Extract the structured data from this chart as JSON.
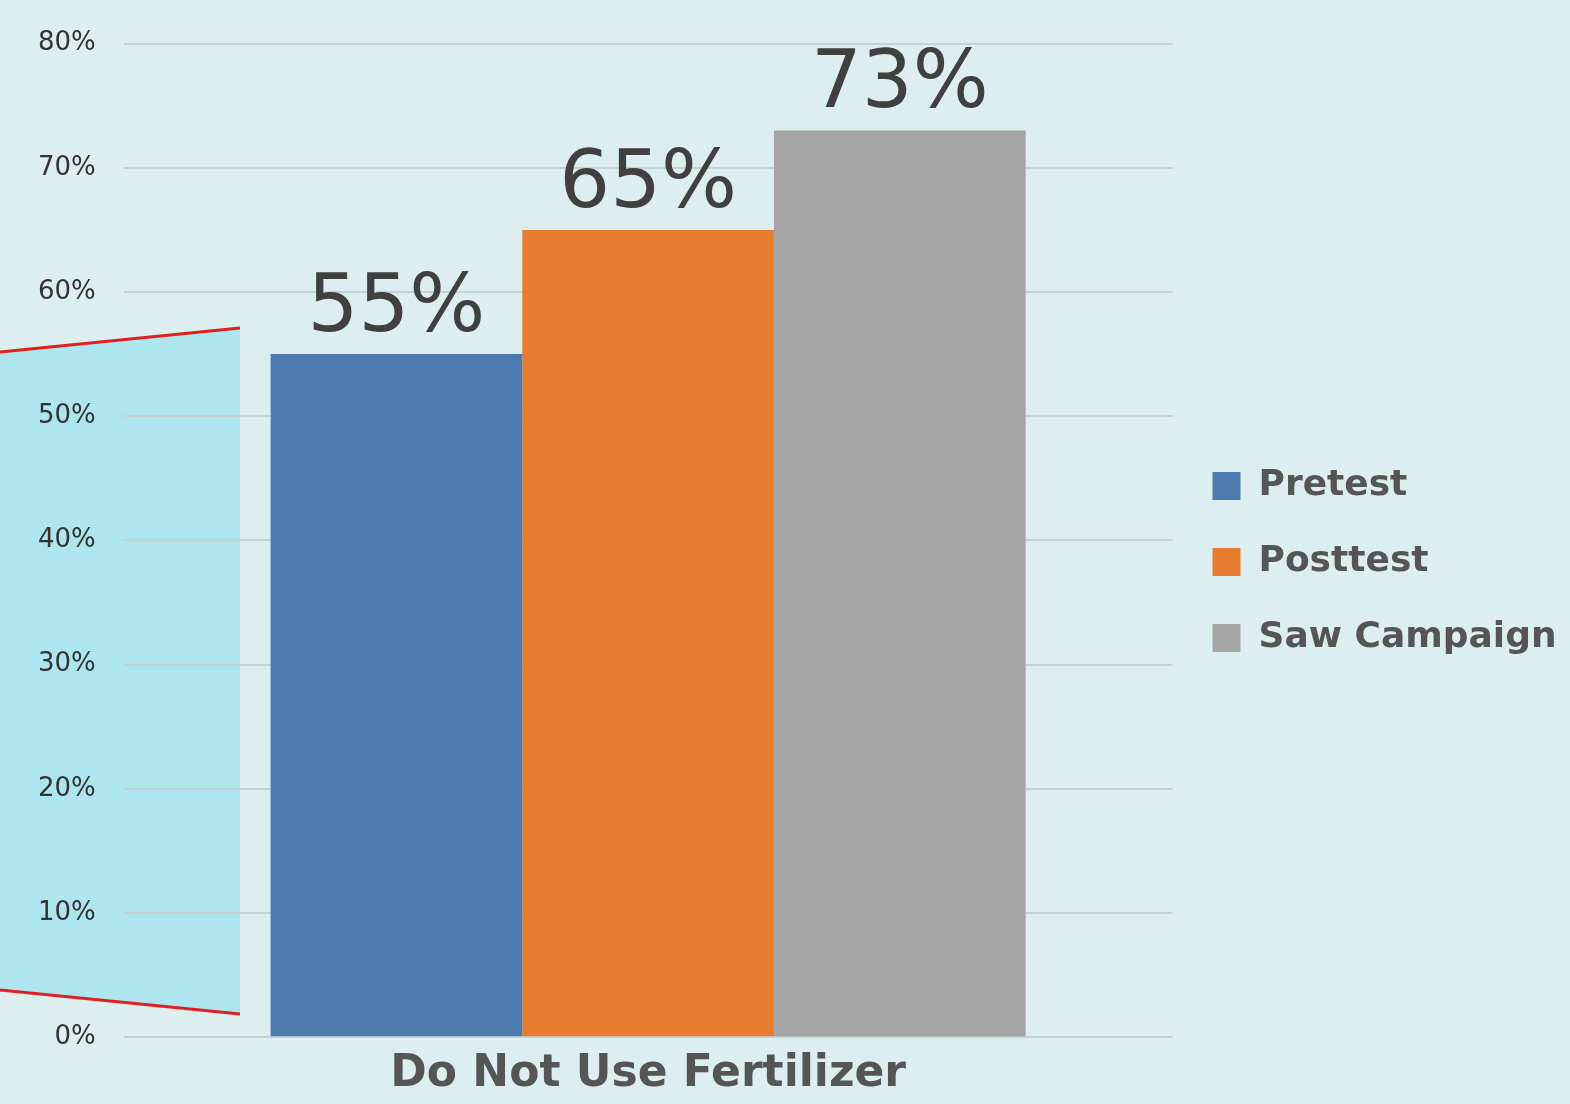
{
  "chart_data": {
    "type": "bar",
    "categories": [
      "Do Not Use Fertilizer"
    ],
    "series": [
      {
        "name": "Pretest",
        "color": "#4e7bad",
        "values": [
          55
        ],
        "value_labels": [
          "55%"
        ]
      },
      {
        "name": "Posttest",
        "color": "#e87c2e",
        "values": [
          65
        ],
        "value_labels": [
          "65%"
        ]
      },
      {
        "name": "Saw Campaign",
        "color": "#a5a5a5",
        "values": [
          73
        ],
        "value_labels": [
          "73%"
        ]
      }
    ],
    "ylim": [
      0,
      80
    ],
    "yticks": [
      {
        "value": 0,
        "label": "0%"
      },
      {
        "value": 10,
        "label": "10%"
      },
      {
        "value": 20,
        "label": "20%"
      },
      {
        "value": 30,
        "label": "30%"
      },
      {
        "value": 40,
        "label": "40%"
      },
      {
        "value": 50,
        "label": "50%"
      },
      {
        "value": 60,
        "label": "60%"
      },
      {
        "value": 70,
        "label": "70%"
      },
      {
        "value": 80,
        "label": "80%"
      }
    ],
    "grid": "y",
    "legend": "right"
  }
}
